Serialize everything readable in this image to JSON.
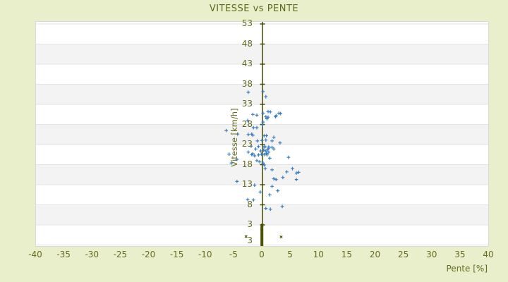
{
  "title": "VITESSE vs PENTE",
  "colors": {
    "background": "#e9eecb",
    "plot_background": "#ffffff",
    "band_gray": "#f3f3f3",
    "gridline": "#e3e3e3",
    "plot_border": "#d9d9d9",
    "axis_line": "#454a00",
    "text_olive": "#636b1d",
    "marker_blue": "#3b7dbd",
    "marker_olive": "#4c5300"
  },
  "chart_data": {
    "type": "scatter",
    "title": "VITESSE vs PENTE",
    "xlabel": "Pente [%]",
    "ylabel": "Vitesse [km/h]",
    "xlim": [
      -40,
      40
    ],
    "ylim": [
      -2.3,
      53.5
    ],
    "x_ticks": [
      -40,
      -35,
      -30,
      -25,
      -20,
      -15,
      -10,
      -5,
      0,
      5,
      10,
      15,
      20,
      25,
      30,
      35,
      40
    ],
    "y_ticks": [
      53,
      48,
      43,
      38,
      33,
      28,
      23,
      18,
      13,
      8,
      3
    ],
    "y_bottom_extra_label": {
      "value": -1.1,
      "label": "3"
    },
    "band_boundaries": [
      53,
      48,
      43,
      38,
      33,
      28,
      23,
      18,
      13,
      8,
      3,
      -2
    ],
    "grid": "alternating horizontal bands, vertical axis line at x=0",
    "legend": "none",
    "series": [
      {
        "name": "vitesse-vs-pente-points",
        "marker": "plus",
        "color": "#3b7dbd",
        "points": [
          [
            -2.5,
            36.0
          ],
          [
            0.1,
            36.2
          ],
          [
            0.6,
            34.9
          ],
          [
            1.0,
            31.2
          ],
          [
            1.4,
            31.1
          ],
          [
            2.9,
            30.8
          ],
          [
            3.2,
            30.7
          ],
          [
            2.4,
            30.2
          ],
          [
            0.1,
            30.8
          ],
          [
            -1.7,
            30.5
          ],
          [
            -1.0,
            30.3
          ],
          [
            0.6,
            29.9
          ],
          [
            1.0,
            29.8
          ],
          [
            2.3,
            29.9
          ],
          [
            0.8,
            29.4
          ],
          [
            -2.6,
            29.0
          ],
          [
            0.1,
            28.6
          ],
          [
            0.0,
            27.9
          ],
          [
            -1.6,
            27.2
          ],
          [
            -1.0,
            27.2
          ],
          [
            -6.4,
            26.5
          ],
          [
            -4.4,
            25.6
          ],
          [
            -2.5,
            25.5
          ],
          [
            -1.9,
            25.6
          ],
          [
            -1.7,
            25.3
          ],
          [
            0.3,
            25.2
          ],
          [
            0.7,
            25.2
          ],
          [
            2.0,
            24.8
          ],
          [
            -0.9,
            23.9
          ],
          [
            -0.1,
            24.0
          ],
          [
            0.6,
            24.1
          ],
          [
            1.7,
            23.9
          ],
          [
            3.1,
            23.4
          ],
          [
            -2.0,
            22.6
          ],
          [
            -0.7,
            22.5
          ],
          [
            0.4,
            22.6
          ],
          [
            1.1,
            22.4
          ],
          [
            1.7,
            22.3
          ],
          [
            0.4,
            22.3
          ],
          [
            1.1,
            22.1
          ],
          [
            2.0,
            21.9
          ],
          [
            -1.2,
            21.9
          ],
          [
            0.2,
            21.6
          ],
          [
            0.6,
            21.4
          ],
          [
            -0.3,
            21.4
          ],
          [
            0.9,
            21.7
          ],
          [
            1.1,
            21.1
          ],
          [
            -2.5,
            21.1
          ],
          [
            0.7,
            20.8
          ],
          [
            -1.7,
            20.7
          ],
          [
            -5.9,
            20.6
          ],
          [
            -0.2,
            20.6
          ],
          [
            -1.9,
            20.5
          ],
          [
            0.3,
            20.5
          ],
          [
            -0.7,
            20.4
          ],
          [
            0.8,
            20.4
          ],
          [
            -1.4,
            20.2
          ],
          [
            4.6,
            19.8
          ],
          [
            1.3,
            19.6
          ],
          [
            -4.5,
            19.3
          ],
          [
            -1.0,
            19.0
          ],
          [
            -0.5,
            18.7
          ],
          [
            -5.5,
            18.4
          ],
          [
            0.1,
            18.4
          ],
          [
            0.3,
            17.9
          ],
          [
            0.5,
            17.0
          ],
          [
            5.3,
            17.0
          ],
          [
            1.7,
            16.7
          ],
          [
            4.3,
            16.2
          ],
          [
            6.4,
            16.1
          ],
          [
            6.0,
            15.9
          ],
          [
            3.6,
            14.8
          ],
          [
            2.0,
            14.5
          ],
          [
            2.4,
            14.3
          ],
          [
            6.0,
            14.3
          ],
          [
            -4.5,
            13.8
          ],
          [
            -1.4,
            12.9
          ],
          [
            1.7,
            12.6
          ],
          [
            2.7,
            11.5
          ],
          [
            -0.4,
            11.2
          ],
          [
            1.3,
            10.5
          ],
          [
            -2.6,
            9.3
          ],
          [
            -1.6,
            9.2
          ],
          [
            3.5,
            7.6
          ],
          [
            0.6,
            7.1
          ],
          [
            1.4,
            6.9
          ]
        ]
      },
      {
        "name": "zero-speed-cluster",
        "marker": "cross",
        "color": "#4c5300",
        "points": [
          [
            -0.1,
            -2.4
          ],
          [
            -0.1,
            -2.1
          ],
          [
            -0.1,
            -2.0
          ],
          [
            -0.1,
            -1.9
          ],
          [
            -0.1,
            -1.8
          ],
          [
            -0.1,
            -1.7
          ],
          [
            -0.1,
            -1.6
          ],
          [
            -0.1,
            -1.5
          ],
          [
            -0.1,
            -1.4
          ],
          [
            -0.1,
            -1.3
          ],
          [
            -0.1,
            -1.2
          ],
          [
            -0.1,
            -1.1
          ],
          [
            -0.1,
            -1.0
          ],
          [
            -0.1,
            -0.9
          ],
          [
            -0.1,
            -0.8
          ],
          [
            -0.1,
            -0.7
          ],
          [
            -0.1,
            -0.6
          ],
          [
            -0.1,
            -0.5
          ],
          [
            -0.1,
            -0.4
          ],
          [
            -0.1,
            -0.3
          ],
          [
            -0.1,
            -0.2
          ],
          [
            -0.1,
            -0.1
          ],
          [
            -0.1,
            0.0
          ],
          [
            -0.1,
            0.1
          ],
          [
            -0.1,
            0.2
          ],
          [
            -0.1,
            0.3
          ],
          [
            -0.1,
            0.4
          ],
          [
            -0.1,
            0.5
          ],
          [
            -0.1,
            0.6
          ],
          [
            -0.1,
            0.7
          ],
          [
            -0.1,
            0.8
          ],
          [
            -0.1,
            0.9
          ],
          [
            -0.1,
            1.0
          ],
          [
            -0.1,
            1.1
          ],
          [
            -0.1,
            1.2
          ],
          [
            -0.1,
            1.3
          ],
          [
            -0.1,
            1.4
          ],
          [
            -0.1,
            1.5
          ],
          [
            -0.1,
            1.6
          ],
          [
            -0.1,
            1.7
          ],
          [
            -0.1,
            1.8
          ],
          [
            -0.1,
            1.9
          ],
          [
            -0.1,
            2.0
          ],
          [
            -0.1,
            2.1
          ],
          [
            -0.1,
            2.2
          ],
          [
            -0.1,
            2.3
          ],
          [
            -0.1,
            2.4
          ],
          [
            -0.1,
            2.5
          ],
          [
            -0.1,
            2.7
          ],
          [
            -0.05,
            2.95
          ],
          [
            -2.9,
            0.1
          ],
          [
            3.3,
            0.0
          ]
        ]
      }
    ]
  }
}
